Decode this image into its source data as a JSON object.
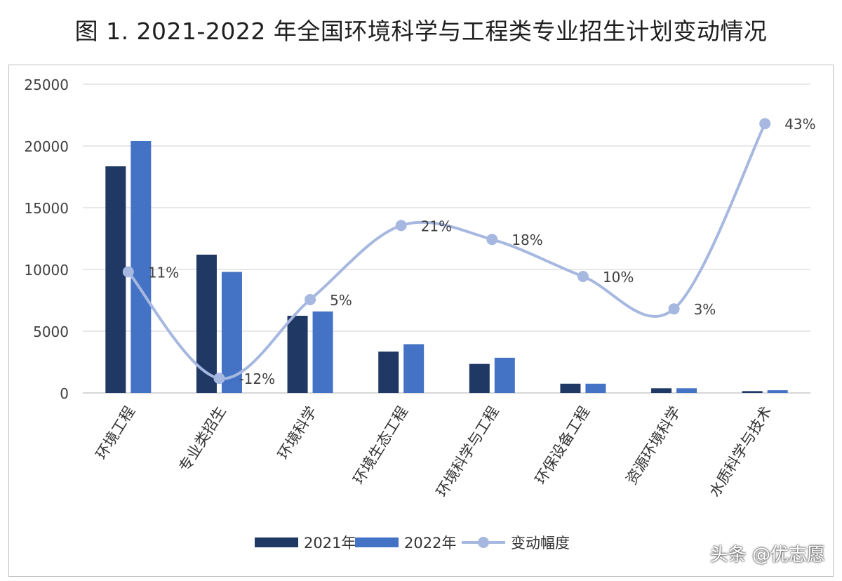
{
  "title": "图 1. 2021-2022 年全国环境科学与工程类专业招生计划变动情况",
  "credit": "头条 @优志愿",
  "colors": {
    "series2021": "#1f3864",
    "series2022": "#4472c4",
    "change": "#a6b8e0",
    "grid": "#d9d9d9",
    "axis": "#bfbfbf"
  },
  "legend": [
    {
      "label": "2021年"
    },
    {
      "label": "2022年"
    },
    {
      "label": "变动幅度"
    }
  ],
  "chart_data": {
    "type": "bar",
    "title": "图 1. 2021-2022 年全国环境科学与工程类专业招生计划变动情况",
    "categories": [
      "环境工程",
      "专业类招生",
      "环境科学",
      "环境生态工程",
      "环境科学与工程",
      "环保设备工程",
      "资源环境科学",
      "水质科学与技术"
    ],
    "series": [
      {
        "name": "2021年",
        "type": "bar",
        "values": [
          18350,
          11200,
          6250,
          3350,
          2350,
          750,
          380,
          150
        ]
      },
      {
        "name": "2022年",
        "type": "bar",
        "values": [
          20400,
          9800,
          6600,
          3950,
          2850,
          750,
          380,
          220
        ]
      },
      {
        "name": "变动幅度",
        "type": "line",
        "smooth": true,
        "values": [
          11,
          -12,
          5,
          21,
          18,
          10,
          3,
          43
        ],
        "labels": [
          "11%",
          "-12%",
          "5%",
          "21%",
          "18%",
          "10%",
          "3%",
          "43%"
        ]
      }
    ],
    "yticks": [
      "0",
      "5000",
      "10000",
      "15000",
      "20000",
      "25000"
    ],
    "ylim": [
      0,
      25000
    ],
    "grid": true,
    "legend_position": "bottom"
  }
}
